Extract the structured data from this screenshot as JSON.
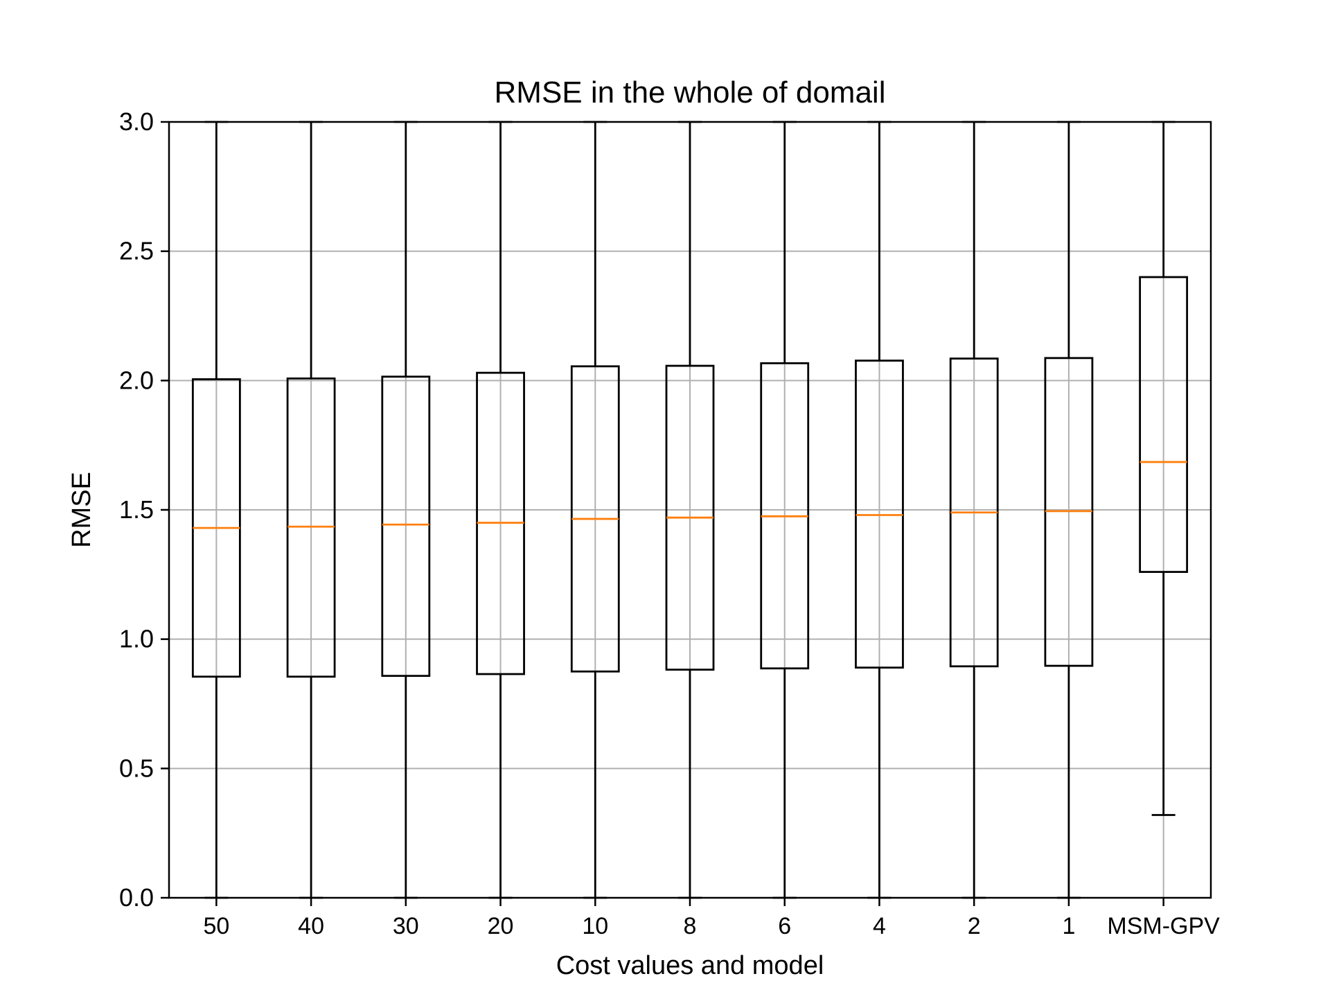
{
  "chart_data": {
    "type": "box",
    "title": "RMSE in the whole of domail",
    "xlabel": "Cost values and model",
    "ylabel": "RMSE",
    "ylim": [
      0,
      3.0
    ],
    "yticks": [
      "0.0",
      "0.5",
      "1.0",
      "1.5",
      "2.0",
      "2.5",
      "3.0"
    ],
    "grid": true,
    "categories": [
      "50",
      "40",
      "30",
      "20",
      "10",
      "8",
      "6",
      "4",
      "2",
      "1",
      "MSM-GPV"
    ],
    "boxes": [
      {
        "label": "50",
        "whisker_low": 0.0,
        "q1": 0.855,
        "median": 1.43,
        "q3": 2.005,
        "whisker_high": 3.0
      },
      {
        "label": "40",
        "whisker_low": 0.0,
        "q1": 0.855,
        "median": 1.435,
        "q3": 2.008,
        "whisker_high": 3.0
      },
      {
        "label": "30",
        "whisker_low": 0.0,
        "q1": 0.858,
        "median": 1.443,
        "q3": 2.015,
        "whisker_high": 3.0
      },
      {
        "label": "20",
        "whisker_low": 0.0,
        "q1": 0.865,
        "median": 1.45,
        "q3": 2.03,
        "whisker_high": 3.0
      },
      {
        "label": "10",
        "whisker_low": 0.0,
        "q1": 0.875,
        "median": 1.465,
        "q3": 2.055,
        "whisker_high": 3.0
      },
      {
        "label": "8",
        "whisker_low": 0.0,
        "q1": 0.882,
        "median": 1.47,
        "q3": 2.057,
        "whisker_high": 3.0
      },
      {
        "label": "6",
        "whisker_low": 0.0,
        "q1": 0.887,
        "median": 1.475,
        "q3": 2.067,
        "whisker_high": 3.0
      },
      {
        "label": "4",
        "whisker_low": 0.0,
        "q1": 0.89,
        "median": 1.48,
        "q3": 2.077,
        "whisker_high": 3.0
      },
      {
        "label": "2",
        "whisker_low": 0.0,
        "q1": 0.895,
        "median": 1.49,
        "q3": 2.085,
        "whisker_high": 3.0
      },
      {
        "label": "1",
        "whisker_low": 0.0,
        "q1": 0.897,
        "median": 1.495,
        "q3": 2.087,
        "whisker_high": 3.0
      },
      {
        "label": "MSM-GPV",
        "whisker_low": 0.32,
        "q1": 1.26,
        "median": 1.685,
        "q3": 2.4,
        "whisker_high": 3.0
      }
    ],
    "colors": {
      "box": "#000000",
      "median": "#ff7f0e",
      "grid": "#b0b0b0"
    }
  }
}
